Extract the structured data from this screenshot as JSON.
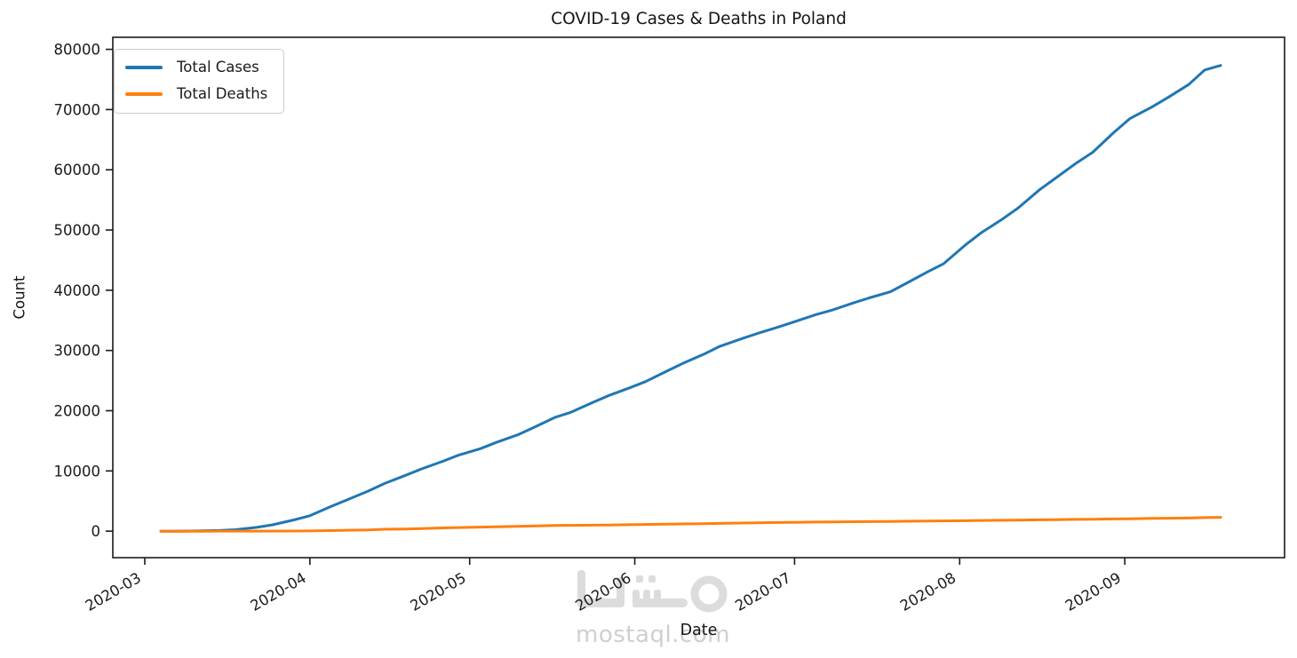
{
  "chart_data": {
    "type": "line",
    "title": "COVID-19 Cases & Deaths in Poland",
    "xlabel": "Date",
    "ylabel": "Count",
    "grid": false,
    "legend_position": "upper-left",
    "x_range": [
      "2020-02-24",
      "2020-10-01"
    ],
    "y_range": [
      -4400,
      82000
    ],
    "x_ticks": [
      {
        "date": "2020-03-01",
        "label": "2020-03"
      },
      {
        "date": "2020-04-01",
        "label": "2020-04"
      },
      {
        "date": "2020-05-01",
        "label": "2020-05"
      },
      {
        "date": "2020-06-01",
        "label": "2020-06"
      },
      {
        "date": "2020-07-01",
        "label": "2020-07"
      },
      {
        "date": "2020-08-01",
        "label": "2020-08"
      },
      {
        "date": "2020-09-01",
        "label": "2020-09"
      }
    ],
    "y_ticks": [
      0,
      10000,
      20000,
      30000,
      40000,
      50000,
      60000,
      70000,
      80000
    ],
    "series": [
      {
        "name": "Total Cases",
        "color": "#1f77b4",
        "points": [
          [
            "2020-03-04",
            1
          ],
          [
            "2020-03-08",
            11
          ],
          [
            "2020-03-11",
            31
          ],
          [
            "2020-03-15",
            119
          ],
          [
            "2020-03-18",
            251
          ],
          [
            "2020-03-22",
            634
          ],
          [
            "2020-03-25",
            1051
          ],
          [
            "2020-03-29",
            1862
          ],
          [
            "2020-04-01",
            2554
          ],
          [
            "2020-04-05",
            4102
          ],
          [
            "2020-04-08",
            5205
          ],
          [
            "2020-04-12",
            6674
          ],
          [
            "2020-04-15",
            7918
          ],
          [
            "2020-04-19",
            9287
          ],
          [
            "2020-04-22",
            10346
          ],
          [
            "2020-04-26",
            11617
          ],
          [
            "2020-04-29",
            12640
          ],
          [
            "2020-05-03",
            13693
          ],
          [
            "2020-05-06",
            14740
          ],
          [
            "2020-05-10",
            15996
          ],
          [
            "2020-05-13",
            17204
          ],
          [
            "2020-05-17",
            18885
          ],
          [
            "2020-05-20",
            19739
          ],
          [
            "2020-05-24",
            21326
          ],
          [
            "2020-05-27",
            22473
          ],
          [
            "2020-05-31",
            23786
          ],
          [
            "2020-06-03",
            24826
          ],
          [
            "2020-06-07",
            26561
          ],
          [
            "2020-06-10",
            27842
          ],
          [
            "2020-06-14",
            29392
          ],
          [
            "2020-06-17",
            30701
          ],
          [
            "2020-06-21",
            31931
          ],
          [
            "2020-06-24",
            32821
          ],
          [
            "2020-06-28",
            33907
          ],
          [
            "2020-07-01",
            34775
          ],
          [
            "2020-07-05",
            35950
          ],
          [
            "2020-07-08",
            36689
          ],
          [
            "2020-07-12",
            37891
          ],
          [
            "2020-07-15",
            38721
          ],
          [
            "2020-07-19",
            39746
          ],
          [
            "2020-07-22",
            41162
          ],
          [
            "2020-07-26",
            43065
          ],
          [
            "2020-07-29",
            44416
          ],
          [
            "2020-08-02",
            47469
          ],
          [
            "2020-08-05",
            49515
          ],
          [
            "2020-08-09",
            51791
          ],
          [
            "2020-08-12",
            53676
          ],
          [
            "2020-08-16",
            56684
          ],
          [
            "2020-08-19",
            58611
          ],
          [
            "2020-08-23",
            61181
          ],
          [
            "2020-08-26",
            62927
          ],
          [
            "2020-08-30",
            66239
          ],
          [
            "2020-09-02",
            68517
          ],
          [
            "2020-09-06",
            70387
          ],
          [
            "2020-09-09",
            71947
          ],
          [
            "2020-09-13",
            74152
          ],
          [
            "2020-09-16",
            76571
          ],
          [
            "2020-09-19",
            77328
          ]
        ]
      },
      {
        "name": "Total Deaths",
        "color": "#ff7f0e",
        "points": [
          [
            "2020-03-04",
            0
          ],
          [
            "2020-03-12",
            1
          ],
          [
            "2020-03-15",
            3
          ],
          [
            "2020-03-22",
            7
          ],
          [
            "2020-03-29",
            22
          ],
          [
            "2020-04-01",
            43
          ],
          [
            "2020-04-05",
            94
          ],
          [
            "2020-04-08",
            159
          ],
          [
            "2020-04-12",
            208
          ],
          [
            "2020-04-15",
            314
          ],
          [
            "2020-04-19",
            360
          ],
          [
            "2020-04-22",
            435
          ],
          [
            "2020-04-26",
            535
          ],
          [
            "2020-04-29",
            596
          ],
          [
            "2020-05-03",
            678
          ],
          [
            "2020-05-06",
            733
          ],
          [
            "2020-05-10",
            800
          ],
          [
            "2020-05-13",
            847
          ],
          [
            "2020-05-17",
            936
          ],
          [
            "2020-05-20",
            962
          ],
          [
            "2020-05-24",
            996
          ],
          [
            "2020-05-27",
            1024
          ],
          [
            "2020-05-31",
            1064
          ],
          [
            "2020-06-03",
            1116
          ],
          [
            "2020-06-07",
            1157
          ],
          [
            "2020-06-10",
            1206
          ],
          [
            "2020-06-14",
            1247
          ],
          [
            "2020-06-17",
            1286
          ],
          [
            "2020-06-21",
            1356
          ],
          [
            "2020-06-24",
            1396
          ],
          [
            "2020-06-28",
            1438
          ],
          [
            "2020-07-01",
            1463
          ],
          [
            "2020-07-05",
            1517
          ],
          [
            "2020-07-08",
            1542
          ],
          [
            "2020-07-12",
            1571
          ],
          [
            "2020-07-15",
            1592
          ],
          [
            "2020-07-19",
            1618
          ],
          [
            "2020-07-22",
            1642
          ],
          [
            "2020-07-26",
            1671
          ],
          [
            "2020-07-29",
            1700
          ],
          [
            "2020-08-02",
            1738
          ],
          [
            "2020-08-05",
            1774
          ],
          [
            "2020-08-09",
            1807
          ],
          [
            "2020-08-12",
            1844
          ],
          [
            "2020-08-16",
            1877
          ],
          [
            "2020-08-19",
            1913
          ],
          [
            "2020-08-23",
            1951
          ],
          [
            "2020-08-26",
            1987
          ],
          [
            "2020-08-30",
            2032
          ],
          [
            "2020-09-02",
            2058
          ],
          [
            "2020-09-06",
            2113
          ],
          [
            "2020-09-09",
            2147
          ],
          [
            "2020-09-13",
            2172
          ],
          [
            "2020-09-16",
            2253
          ],
          [
            "2020-09-19",
            2293
          ]
        ]
      }
    ]
  },
  "watermark": {
    "logo_text": "مستقل",
    "domain": "mostaql.com"
  }
}
